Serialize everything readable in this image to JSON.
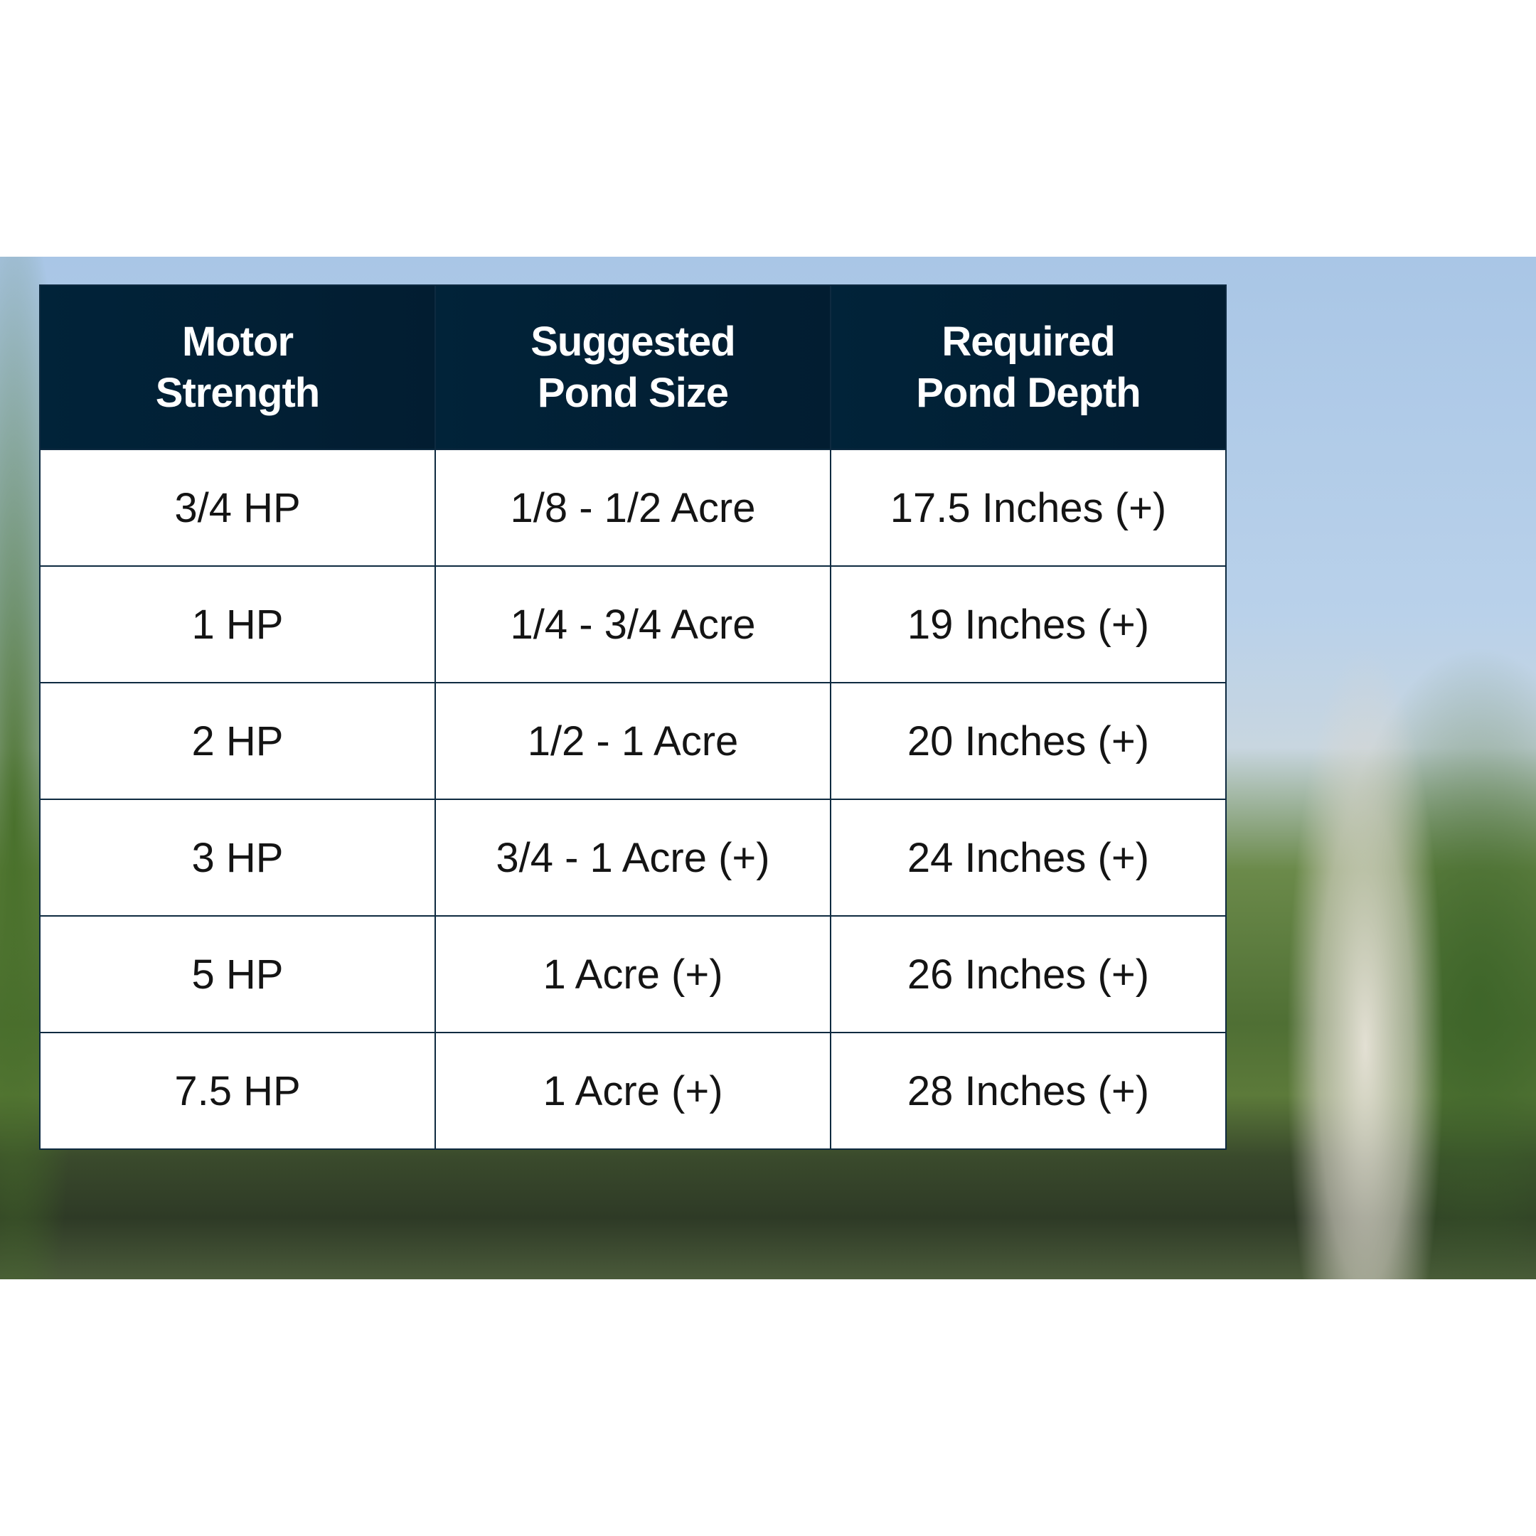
{
  "table": {
    "headers": [
      [
        "Motor",
        "Strength"
      ],
      [
        "Suggested",
        "Pond Size"
      ],
      [
        "Required",
        "Pond Depth"
      ]
    ],
    "rows": [
      [
        "3/4 HP",
        "1/8 - 1/2 Acre",
        "17.5 Inches (+)"
      ],
      [
        "1 HP",
        "1/4 - 3/4 Acre",
        "19 Inches (+)"
      ],
      [
        "2 HP",
        "1/2 - 1 Acre",
        "20 Inches (+)"
      ],
      [
        "3 HP",
        "3/4 - 1 Acre (+)",
        "24 Inches (+)"
      ],
      [
        "5 HP",
        "1 Acre (+)",
        "26 Inches (+)"
      ],
      [
        "7.5 HP",
        "1 Acre (+)",
        "28 Inches (+)"
      ]
    ]
  },
  "colors": {
    "header_bg": "#012339",
    "border": "#0e2a40",
    "header_text": "#ffffff"
  }
}
